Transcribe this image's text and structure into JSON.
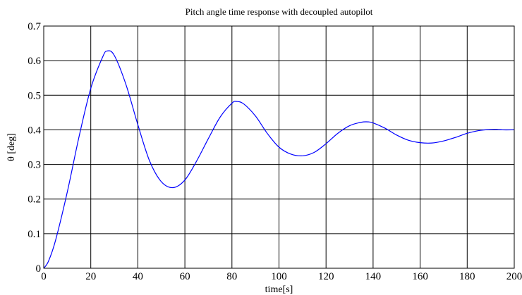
{
  "chart_data": {
    "type": "line",
    "title": "Pitch angle time response with decoupled autopilot",
    "xlabel": "time[s]",
    "ylabel": "θ [deg]",
    "xlim": [
      0,
      200
    ],
    "ylim": [
      0,
      0.7
    ],
    "grid": true,
    "x_ticks": [
      "0",
      "20",
      "40",
      "60",
      "80",
      "100",
      "120",
      "140",
      "160",
      "180",
      "200"
    ],
    "y_ticks": [
      "0",
      "0.1",
      "0.2",
      "0.3",
      "0.4",
      "0.5",
      "0.6",
      "0.7"
    ],
    "series": [
      {
        "color": "#0000ff",
        "x": [
          0,
          2,
          5,
          10,
          15,
          20,
          25,
          27,
          30,
          35,
          40,
          45,
          50,
          55,
          60,
          65,
          70,
          75,
          80,
          82,
          85,
          90,
          95,
          100,
          105,
          110,
          115,
          120,
          125,
          130,
          135,
          138,
          140,
          145,
          150,
          155,
          160,
          165,
          170,
          175,
          180,
          185,
          190,
          193,
          195,
          200
        ],
        "y": [
          0,
          0.02,
          0.08,
          0.22,
          0.38,
          0.52,
          0.61,
          0.628,
          0.615,
          0.53,
          0.415,
          0.31,
          0.25,
          0.233,
          0.255,
          0.31,
          0.375,
          0.437,
          0.477,
          0.482,
          0.475,
          0.44,
          0.39,
          0.35,
          0.33,
          0.325,
          0.335,
          0.36,
          0.39,
          0.412,
          0.422,
          0.423,
          0.42,
          0.405,
          0.385,
          0.37,
          0.363,
          0.362,
          0.368,
          0.378,
          0.39,
          0.398,
          0.401,
          0.401,
          0.4,
          0.4
        ]
      }
    ]
  }
}
